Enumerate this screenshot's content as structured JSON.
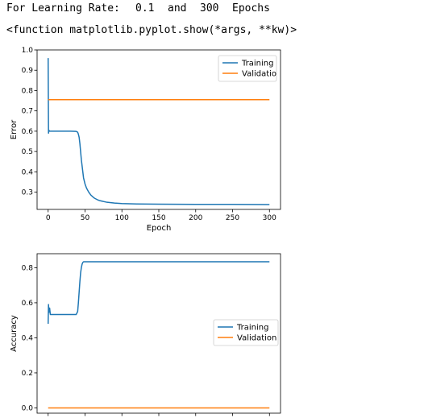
{
  "output": {
    "line1_prefix": "For Learning Rate:",
    "line1_lr": "0.1",
    "line1_and": "and",
    "line1_epochs": "300",
    "line1_suffix": "Epochs",
    "line2": "<function matplotlib.pyplot.show(*args, **kw)>"
  },
  "chart_data": [
    {
      "type": "line",
      "xlabel": "Epoch",
      "ylabel": "Error",
      "xlim": [
        -15,
        315
      ],
      "ylim": [
        0.215,
        1.0
      ],
      "xticks": [
        0,
        50,
        100,
        150,
        200,
        250,
        300
      ],
      "yticks": [
        0.3,
        0.4,
        0.5,
        0.6,
        0.7,
        0.8,
        0.9,
        1.0
      ],
      "ytick_labels": [
        "0.3",
        "0.4",
        "0.5",
        "0.6",
        "0.7",
        "0.8",
        "0.9",
        "1.0"
      ],
      "legend": "top-right",
      "series": [
        {
          "name": "Training",
          "color": "#1f77b4",
          "x": [
            0,
            0.5,
            1,
            2,
            5,
            10,
            20,
            30,
            38,
            40,
            41,
            42,
            43,
            44,
            45,
            46,
            47,
            48,
            50,
            52,
            55,
            58,
            62,
            66,
            70,
            80,
            90,
            100,
            120,
            150,
            200,
            250,
            300
          ],
          "y": [
            0.96,
            0.59,
            0.605,
            0.6,
            0.6,
            0.6,
            0.6,
            0.6,
            0.599,
            0.595,
            0.585,
            0.57,
            0.54,
            0.5,
            0.46,
            0.43,
            0.4,
            0.37,
            0.34,
            0.32,
            0.3,
            0.285,
            0.272,
            0.264,
            0.258,
            0.25,
            0.246,
            0.244,
            0.242,
            0.241,
            0.24,
            0.24,
            0.239
          ]
        },
        {
          "name": "Validatio",
          "color": "#ff7f0e",
          "x": [
            0,
            300
          ],
          "y": [
            0.755,
            0.755
          ]
        }
      ]
    },
    {
      "type": "line",
      "xlabel": "",
      "ylabel": "Accuracy",
      "xlim": [
        -15,
        315
      ],
      "ylim": [
        -0.03,
        0.88
      ],
      "xticks": [
        0,
        50,
        100,
        150,
        200,
        250,
        300
      ],
      "yticks": [
        0.0,
        0.2,
        0.4,
        0.6,
        0.8
      ],
      "ytick_labels": [
        "0.0",
        "0.2",
        "0.4",
        "0.6",
        "0.8"
      ],
      "legend": "center-right",
      "series": [
        {
          "name": "Training",
          "color": "#1f77b4",
          "x": [
            0,
            0.5,
            1,
            2,
            3,
            5,
            10,
            20,
            30,
            38,
            40,
            41,
            42,
            43,
            44,
            45,
            46,
            47,
            48,
            49,
            50,
            300
          ],
          "y": [
            0.48,
            0.59,
            0.545,
            0.57,
            0.533,
            0.533,
            0.533,
            0.533,
            0.533,
            0.533,
            0.55,
            0.6,
            0.66,
            0.72,
            0.77,
            0.8,
            0.82,
            0.83,
            0.834,
            0.834,
            0.834,
            0.834
          ]
        },
        {
          "name": "Validation",
          "color": "#ff7f0e",
          "x": [
            0,
            300
          ],
          "y": [
            0.0,
            0.0
          ]
        }
      ]
    }
  ]
}
